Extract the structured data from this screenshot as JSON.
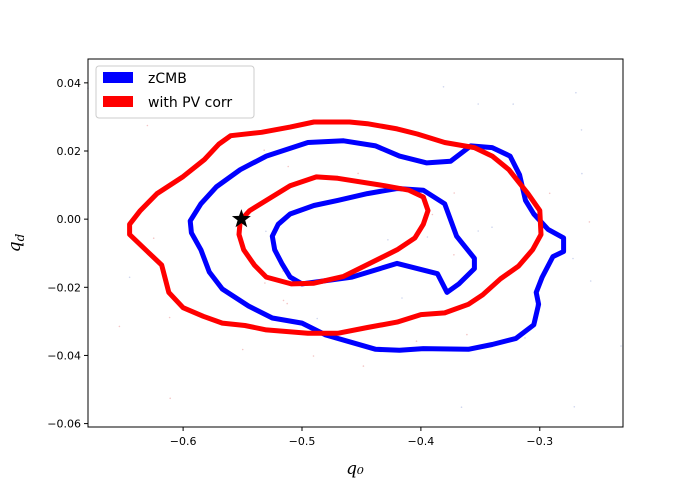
{
  "chart_data": {
    "type": "contour",
    "xlabel": "q₀",
    "ylabel": "q",
    "ylabel_sub": "d",
    "xlim": [
      -0.68,
      -0.23
    ],
    "ylim": [
      -0.061,
      0.047
    ],
    "grid": false,
    "legend_position": "top-left",
    "xticks": [
      -0.6,
      -0.5,
      -0.4,
      -0.3
    ],
    "xtick_labels": [
      "−0.6",
      "−0.5",
      "−0.4",
      "−0.3"
    ],
    "yticks": [
      0.04,
      0.02,
      0.0,
      -0.02,
      -0.04,
      -0.06
    ],
    "ytick_labels": [
      "0.04",
      "0.02",
      "0.00",
      "−0.02",
      "−0.04",
      "−0.06"
    ],
    "series": [
      {
        "name": "zCMB",
        "color": "#0000ff",
        "contours": [
          [
            [
              -0.5,
              -0.019
            ],
            [
              -0.458,
              -0.017
            ],
            [
              -0.42,
              -0.013
            ],
            [
              -0.386,
              -0.016
            ],
            [
              -0.378,
              -0.0215
            ],
            [
              -0.368,
              -0.019
            ],
            [
              -0.355,
              -0.0145
            ],
            [
              -0.355,
              -0.0115
            ],
            [
              -0.37,
              -0.005
            ],
            [
              -0.38,
              0.0045
            ],
            [
              -0.398,
              0.0085
            ],
            [
              -0.42,
              0.009
            ],
            [
              -0.445,
              0.0075
            ],
            [
              -0.47,
              0.0055
            ],
            [
              -0.49,
              0.004
            ],
            [
              -0.51,
              0.0015
            ],
            [
              -0.52,
              -0.0015
            ],
            [
              -0.525,
              -0.005
            ],
            [
              -0.523,
              -0.009
            ],
            [
              -0.517,
              -0.013
            ],
            [
              -0.51,
              -0.017
            ],
            [
              -0.5,
              -0.019
            ]
          ],
          [
            [
              -0.48,
              -0.034
            ],
            [
              -0.46,
              -0.036
            ],
            [
              -0.438,
              -0.0382
            ],
            [
              -0.418,
              -0.0385
            ],
            [
              -0.398,
              -0.038
            ],
            [
              -0.36,
              -0.0382
            ],
            [
              -0.34,
              -0.0368
            ],
            [
              -0.32,
              -0.035
            ],
            [
              -0.305,
              -0.031
            ],
            [
              -0.301,
              -0.025
            ],
            [
              -0.303,
              -0.0215
            ],
            [
              -0.298,
              -0.017
            ],
            [
              -0.289,
              -0.011
            ],
            [
              -0.28,
              -0.0095
            ],
            [
              -0.28,
              -0.0055
            ],
            [
              -0.293,
              -0.003
            ],
            [
              -0.305,
              0.0015
            ],
            [
              -0.312,
              0.0055
            ],
            [
              -0.317,
              0.013
            ],
            [
              -0.325,
              0.0185
            ],
            [
              -0.34,
              0.021
            ],
            [
              -0.358,
              0.0215
            ],
            [
              -0.375,
              0.017
            ],
            [
              -0.395,
              0.0165
            ],
            [
              -0.418,
              0.0185
            ],
            [
              -0.438,
              0.0215
            ],
            [
              -0.465,
              0.023
            ],
            [
              -0.495,
              0.0225
            ],
            [
              -0.53,
              0.0185
            ],
            [
              -0.552,
              0.0145
            ],
            [
              -0.572,
              0.0095
            ],
            [
              -0.585,
              0.0045
            ],
            [
              -0.594,
              -0.0005
            ],
            [
              -0.593,
              -0.004
            ],
            [
              -0.585,
              -0.009
            ],
            [
              -0.578,
              -0.0155
            ],
            [
              -0.567,
              -0.0205
            ],
            [
              -0.545,
              -0.0255
            ],
            [
              -0.525,
              -0.029
            ],
            [
              -0.5,
              -0.0305
            ],
            [
              -0.48,
              -0.034
            ]
          ]
        ]
      },
      {
        "name": "with PV corr",
        "color": "#ff0000",
        "contours": [
          [
            [
              -0.509,
              -0.019
            ],
            [
              -0.49,
              -0.0188
            ],
            [
              -0.465,
              -0.0168
            ],
            [
              -0.443,
              -0.013
            ],
            [
              -0.42,
              -0.009
            ],
            [
              -0.405,
              -0.0055
            ],
            [
              -0.398,
              -0.0015
            ],
            [
              -0.394,
              0.0025
            ],
            [
              -0.398,
              0.0065
            ],
            [
              -0.41,
              0.0085
            ],
            [
              -0.43,
              0.0098
            ],
            [
              -0.47,
              0.012
            ],
            [
              -0.488,
              0.0124
            ],
            [
              -0.51,
              0.0098
            ],
            [
              -0.53,
              0.0055
            ],
            [
              -0.544,
              0.0025
            ],
            [
              -0.552,
              -0.0005
            ],
            [
              -0.553,
              -0.0045
            ],
            [
              -0.549,
              -0.009
            ],
            [
              -0.54,
              -0.0135
            ],
            [
              -0.53,
              -0.017
            ],
            [
              -0.509,
              -0.019
            ]
          ],
          [
            [
              -0.495,
              -0.0335
            ],
            [
              -0.47,
              -0.0335
            ],
            [
              -0.445,
              -0.0318
            ],
            [
              -0.42,
              -0.0302
            ],
            [
              -0.4,
              -0.028
            ],
            [
              -0.38,
              -0.0275
            ],
            [
              -0.36,
              -0.025
            ],
            [
              -0.348,
              -0.0222
            ],
            [
              -0.333,
              -0.0175
            ],
            [
              -0.318,
              -0.0138
            ],
            [
              -0.306,
              -0.009
            ],
            [
              -0.299,
              -0.0045
            ],
            [
              -0.3,
              0.0025
            ],
            [
              -0.31,
              0.0075
            ],
            [
              -0.318,
              0.011
            ],
            [
              -0.326,
              0.0145
            ],
            [
              -0.34,
              0.0185
            ],
            [
              -0.355,
              0.021
            ],
            [
              -0.38,
              0.0225
            ],
            [
              -0.403,
              0.025
            ],
            [
              -0.42,
              0.0265
            ],
            [
              -0.445,
              0.028
            ],
            [
              -0.46,
              0.0285
            ],
            [
              -0.49,
              0.0285
            ],
            [
              -0.51,
              0.027
            ],
            [
              -0.534,
              0.0255
            ],
            [
              -0.56,
              0.0245
            ],
            [
              -0.57,
              0.022
            ],
            [
              -0.582,
              0.0175
            ],
            [
              -0.6,
              0.0125
            ],
            [
              -0.622,
              0.0075
            ],
            [
              -0.636,
              0.0025
            ],
            [
              -0.645,
              -0.0015
            ],
            [
              -0.645,
              -0.0045
            ],
            [
              -0.63,
              -0.0095
            ],
            [
              -0.618,
              -0.0135
            ],
            [
              -0.612,
              -0.0215
            ],
            [
              -0.6,
              -0.026
            ],
            [
              -0.583,
              -0.0285
            ],
            [
              -0.567,
              -0.0305
            ],
            [
              -0.548,
              -0.0312
            ],
            [
              -0.53,
              -0.0325
            ],
            [
              -0.495,
              -0.0335
            ]
          ]
        ]
      }
    ],
    "marker": {
      "x": -0.551,
      "y": 0.0,
      "symbol": "star",
      "color": "#000000"
    }
  },
  "legend": [
    {
      "label": "zCMB",
      "color": "#0000ff"
    },
    {
      "label": "with PV corr",
      "color": "#ff0000"
    }
  ]
}
